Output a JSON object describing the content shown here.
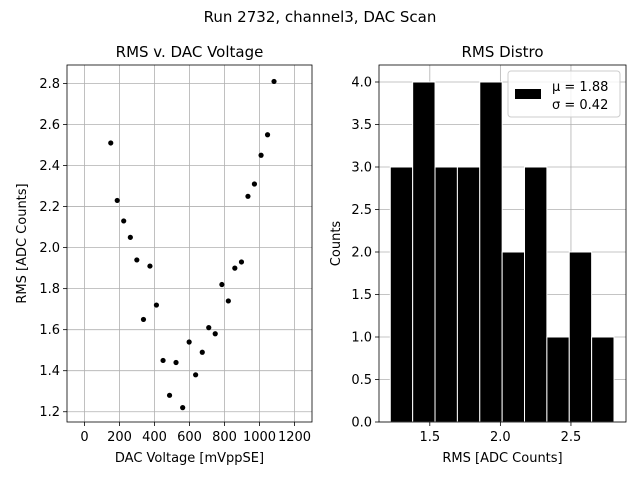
{
  "figure": {
    "suptitle": "Run 2732, channel3, DAC Scan"
  },
  "chart_data": [
    {
      "type": "scatter",
      "title": "RMS v. DAC Voltage",
      "xlabel": "DAC Voltage [mVppSE]",
      "ylabel": "RMS [ADC Counts]",
      "xlim": [
        -100,
        1300
      ],
      "ylim": [
        1.15,
        2.89
      ],
      "xticks": [
        0,
        200,
        400,
        600,
        800,
        1000,
        1200
      ],
      "yticks": [
        1.2,
        1.4,
        1.6,
        1.8,
        2.0,
        2.2,
        2.4,
        2.6,
        2.8
      ],
      "xtick_labels": [
        "0",
        "200",
        "400",
        "600",
        "800",
        "1000",
        "1200"
      ],
      "ytick_labels": [
        "1.2",
        "1.4",
        "1.6",
        "1.8",
        "2.0",
        "2.2",
        "2.4",
        "2.6",
        "2.8"
      ],
      "grid": true,
      "marker_color": "#000000",
      "x": [
        150,
        187,
        224,
        262,
        299,
        337,
        374,
        411,
        449,
        486,
        523,
        561,
        598,
        635,
        673,
        710,
        747,
        785,
        822,
        859,
        897,
        934,
        971,
        1009,
        1046,
        1083
      ],
      "y": [
        2.51,
        2.23,
        2.13,
        2.05,
        1.94,
        1.65,
        1.91,
        1.72,
        1.45,
        1.28,
        1.44,
        1.22,
        1.54,
        1.38,
        1.49,
        1.61,
        1.58,
        1.82,
        1.74,
        1.9,
        1.93,
        2.25,
        2.31,
        2.45,
        2.55,
        2.81
      ]
    },
    {
      "type": "bar",
      "title": "RMS Distro",
      "xlabel": "RMS [ADC Counts]",
      "ylabel": "Counts",
      "xlim": [
        1.14,
        2.89
      ],
      "ylim": [
        0,
        4.2
      ],
      "xticks": [
        1.5,
        2.0,
        2.5
      ],
      "yticks": [
        0,
        0.5,
        1.0,
        1.5,
        2.0,
        2.5,
        3.0,
        3.5,
        4.0
      ],
      "xtick_labels": [
        "1.5",
        "2.0",
        "2.5"
      ],
      "ytick_labels": [
        "0.0",
        "0.5",
        "1.0",
        "1.5",
        "2.0",
        "2.5",
        "3.0",
        "3.5",
        "4.0"
      ],
      "grid": true,
      "bar_color": "#000000",
      "bar_edge_color": "#ffffff",
      "bin_edges": [
        1.22,
        1.3785,
        1.537,
        1.6955,
        1.854,
        2.0125,
        2.171,
        2.3295,
        2.488,
        2.6465,
        2.805
      ],
      "counts": [
        3,
        4,
        3,
        3,
        4,
        2,
        3,
        1,
        2,
        1
      ],
      "legend": {
        "placement": "top-right",
        "entries": [
          "μ = 1.88",
          "σ = 0.42"
        ]
      }
    }
  ]
}
